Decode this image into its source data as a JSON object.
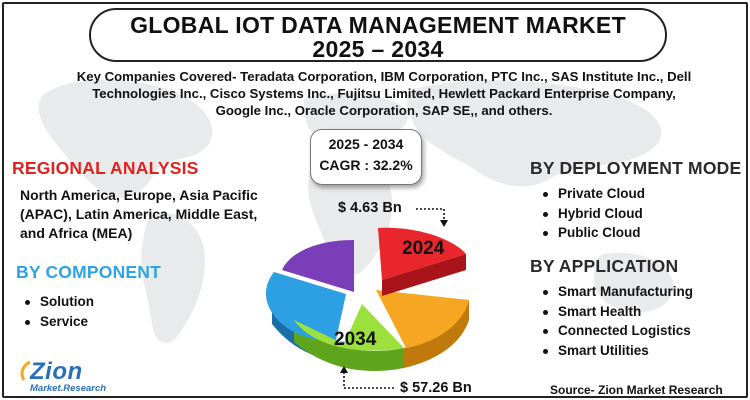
{
  "title": {
    "line1": "GLOBAL IOT DATA MANAGEMENT MARKET",
    "line2": "2025 – 2034"
  },
  "companies": {
    "line1": "Key Companies Covered- Teradata Corporation, IBM Corporation, PTC Inc., SAS Institute Inc., Dell",
    "line2": "Technologies Inc., Cisco Systems Inc., Fujitsu Limited, Hewlett Packard Enterprise Company,",
    "line3": "Google Inc., Oracle Corporation, SAP SE,, and others."
  },
  "cagr": {
    "years": "2025 - 2034",
    "value": "CAGR : 32.2%"
  },
  "regional": {
    "title": "REGIONAL ANALYSIS",
    "text": "North America, Europe, Asia Pacific (APAC), Latin America, Middle East, and Africa (MEA)"
  },
  "component": {
    "title": "BY COMPONENT",
    "items": [
      "Solution",
      "Service"
    ]
  },
  "deployment": {
    "title": "BY DEPLOYMENT MODE",
    "items": [
      "Private Cloud",
      "Hybrid Cloud",
      "Public Cloud"
    ]
  },
  "application": {
    "title": "BY APPLICATION",
    "items": [
      "Smart Manufacturing",
      "Smart Health",
      "Connected Logistics",
      "Smart Utilities"
    ]
  },
  "market": {
    "value_2024": "$ 4.63 Bn",
    "year_2024": "2024",
    "value_2034": "$ 57.26 Bn",
    "year_2034": "2034"
  },
  "logo": {
    "name": "Zion",
    "subtitle": "Market.Research"
  },
  "source": "Source- Zion Market Research",
  "colors": {
    "red_heading": "#e0221f",
    "blue_heading": "#2fa3e3",
    "slice_red": "#e8262b",
    "slice_orange": "#f5a623",
    "slice_green": "#9be03c",
    "slice_blue": "#2d9fe3",
    "slice_purple": "#7a3fb8"
  }
}
